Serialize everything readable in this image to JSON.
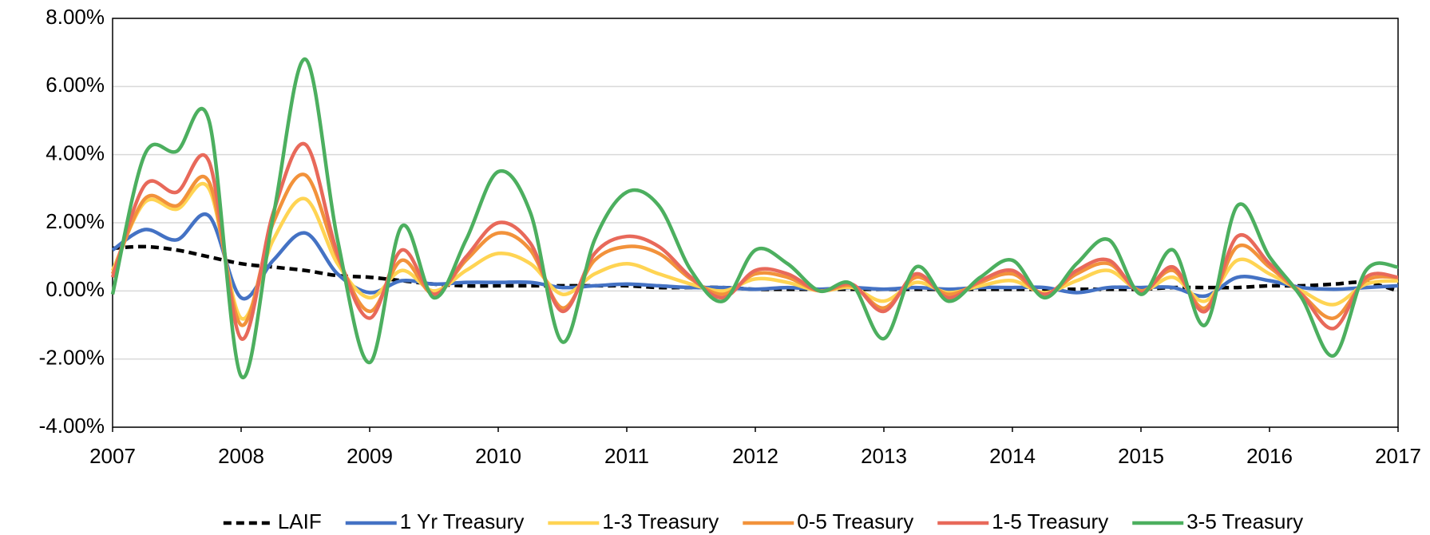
{
  "chart_data": {
    "type": "line",
    "smooth": true,
    "grid": true,
    "x": [
      2007,
      2007.25,
      2007.5,
      2007.75,
      2008,
      2008.25,
      2008.5,
      2008.75,
      2009,
      2009.25,
      2009.5,
      2009.75,
      2010,
      2010.25,
      2010.5,
      2010.75,
      2011,
      2011.25,
      2011.5,
      2011.75,
      2012,
      2012.25,
      2012.5,
      2012.75,
      2013,
      2013.25,
      2013.5,
      2013.75,
      2014,
      2014.25,
      2014.5,
      2014.75,
      2015,
      2015.25,
      2015.5,
      2015.75,
      2016,
      2016.25,
      2016.5,
      2016.75,
      2017
    ],
    "xlim": [
      2007,
      2017
    ],
    "xticks": [
      2007,
      2008,
      2009,
      2010,
      2011,
      2012,
      2013,
      2014,
      2015,
      2016,
      2017
    ],
    "ylim": [
      -4,
      8
    ],
    "yticks": [
      {
        "value": -4,
        "label": "-4.00%"
      },
      {
        "value": -2,
        "label": "-2.00%"
      },
      {
        "value": 0,
        "label": "0.00%"
      },
      {
        "value": 2,
        "label": "2.00%"
      },
      {
        "value": 4,
        "label": "4.00%"
      },
      {
        "value": 6,
        "label": "6.00%"
      },
      {
        "value": 8,
        "label": "8.00%"
      }
    ],
    "series": [
      {
        "name": "LAIF",
        "color": "#000000",
        "linestyle": "dashed",
        "values": [
          1.25,
          1.3,
          1.2,
          1.0,
          0.8,
          0.7,
          0.6,
          0.45,
          0.4,
          0.3,
          0.2,
          0.15,
          0.15,
          0.15,
          0.15,
          0.15,
          0.15,
          0.1,
          0.1,
          0.1,
          0.05,
          0.05,
          0.05,
          0.05,
          0.05,
          0.05,
          0.05,
          0.05,
          0.05,
          0.05,
          0.05,
          0.05,
          0.05,
          0.1,
          0.1,
          0.1,
          0.15,
          0.15,
          0.2,
          0.25,
          0.0
        ]
      },
      {
        "name": "1 Yr Treasury",
        "color": "#4472c4",
        "values": [
          1.2,
          1.8,
          1.5,
          2.2,
          -0.2,
          0.9,
          1.7,
          0.5,
          -0.05,
          0.3,
          0.2,
          0.25,
          0.25,
          0.25,
          0.1,
          0.15,
          0.2,
          0.15,
          0.1,
          0.1,
          0.05,
          0.1,
          0.05,
          0.1,
          0.05,
          0.1,
          0.05,
          0.1,
          0.1,
          0.1,
          -0.05,
          0.1,
          0.1,
          0.1,
          -0.15,
          0.4,
          0.3,
          0.1,
          0.05,
          0.1,
          0.15
        ]
      },
      {
        "name": "1-3 Treasury",
        "color": "#ffd453",
        "values": [
          0.6,
          2.6,
          2.4,
          3.0,
          -0.8,
          1.5,
          2.7,
          0.8,
          -0.2,
          0.6,
          0.0,
          0.6,
          1.1,
          0.8,
          -0.1,
          0.5,
          0.8,
          0.5,
          0.2,
          0.0,
          0.35,
          0.25,
          0.0,
          0.1,
          -0.3,
          0.25,
          -0.05,
          0.15,
          0.3,
          -0.05,
          0.3,
          0.6,
          0.0,
          0.4,
          -0.3,
          0.9,
          0.5,
          0.0,
          -0.4,
          0.2,
          0.3
        ]
      },
      {
        "name": "0-5 Treasury",
        "color": "#f2923b",
        "values": [
          0.5,
          2.7,
          2.5,
          3.2,
          -1.0,
          2.0,
          3.4,
          1.0,
          -0.6,
          0.9,
          -0.1,
          0.9,
          1.7,
          1.2,
          -0.5,
          0.9,
          1.3,
          1.1,
          0.35,
          -0.1,
          0.5,
          0.4,
          0.0,
          0.15,
          -0.5,
          0.4,
          -0.1,
          0.25,
          0.5,
          -0.1,
          0.5,
          0.8,
          0.0,
          0.6,
          -0.5,
          1.3,
          0.7,
          -0.1,
          -0.8,
          0.3,
          0.4
        ]
      },
      {
        "name": "1-5 Treasury",
        "color": "#e8695a",
        "values": [
          0.4,
          3.1,
          2.9,
          3.8,
          -1.4,
          2.3,
          4.3,
          1.1,
          -0.8,
          1.2,
          -0.1,
          1.0,
          2.0,
          1.4,
          -0.6,
          1.1,
          1.6,
          1.3,
          0.4,
          -0.2,
          0.6,
          0.5,
          0.0,
          0.2,
          -0.6,
          0.5,
          -0.2,
          0.3,
          0.6,
          -0.1,
          0.6,
          0.9,
          -0.05,
          0.7,
          -0.6,
          1.6,
          0.8,
          -0.1,
          -1.1,
          0.4,
          0.4
        ]
      },
      {
        "name": "3-5 Treasury",
        "color": "#4caf5f",
        "values": [
          -0.1,
          4.0,
          4.1,
          5.0,
          -2.5,
          2.2,
          6.8,
          1.5,
          -2.1,
          1.9,
          -0.2,
          1.5,
          3.5,
          2.3,
          -1.5,
          1.5,
          2.9,
          2.5,
          0.6,
          -0.3,
          1.2,
          0.8,
          0.0,
          0.2,
          -1.4,
          0.7,
          -0.3,
          0.4,
          0.9,
          -0.2,
          0.8,
          1.5,
          -0.1,
          1.2,
          -1.0,
          2.5,
          1.0,
          -0.2,
          -1.9,
          0.6,
          0.7
        ]
      }
    ]
  }
}
